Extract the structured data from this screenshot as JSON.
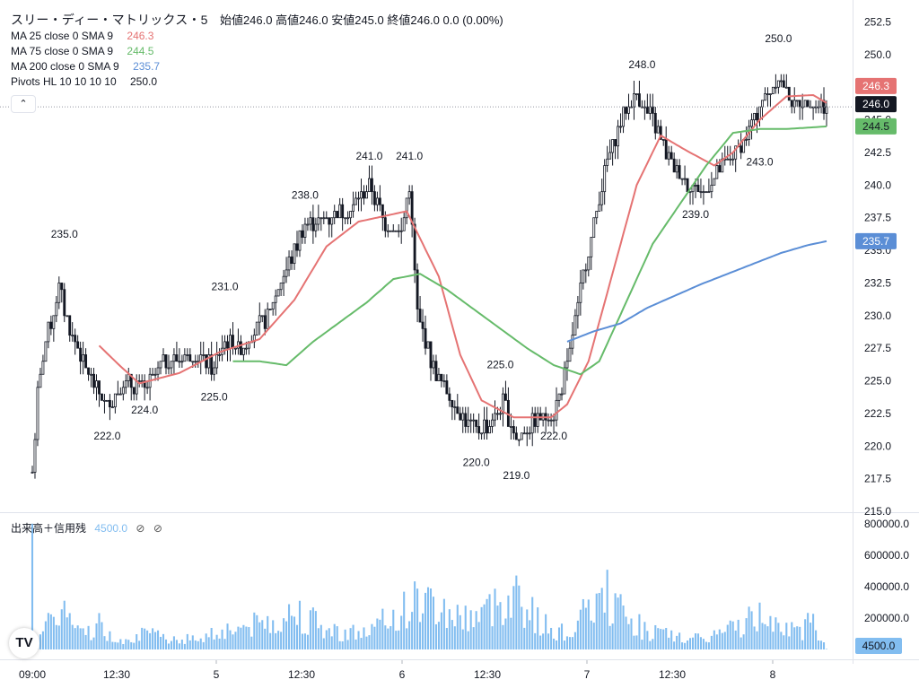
{
  "header": {
    "symbol": "スリー・ディー・マトリックス・5",
    "ohlc": "始値246.0 高値246.0 安値245.0 終値246.0 0.0 (0.00%)"
  },
  "indicators": [
    {
      "label": "MA 25 close 0 SMA 9",
      "value": "246.3",
      "color": "#e57373"
    },
    {
      "label": "MA 75 close 0 SMA 9",
      "value": "244.5",
      "color": "#66bb6a"
    },
    {
      "label": "MA 200 close 0 SMA 9",
      "value": "235.7",
      "color": "#5b8ed6"
    },
    {
      "label": "Pivots HL 10 10 10 10",
      "value": "250.0",
      "color": "#131722"
    }
  ],
  "collapse_icon": "chevron-up-icon",
  "volume_legend": {
    "label": "出来高＋信用残",
    "value": "4500.0",
    "icon1": "⊘",
    "icon2": "⊘"
  },
  "logo": "TV",
  "chart_data": {
    "type": "candlestick",
    "price_axis": {
      "ticks": [
        "252.5",
        "250.0",
        "247.5",
        "245.0",
        "242.5",
        "240.0",
        "237.5",
        "235.0",
        "232.5",
        "230.0",
        "227.5",
        "225.0",
        "222.5",
        "220.0",
        "217.5",
        "215.0"
      ],
      "range": [
        215.0,
        253.5
      ]
    },
    "volume_axis": {
      "ticks": [
        "800000.0",
        "600000.0",
        "400000.0",
        "200000.0"
      ],
      "range": [
        0,
        850000
      ]
    },
    "time_axis": [
      "09:00",
      "12:30",
      "5",
      "12:30",
      "6",
      "12:30",
      "7",
      "12:30",
      "8"
    ],
    "last_price": "246.0",
    "last_volume": "4500.0",
    "price_labels": {
      "ma25": "246.3",
      "ma75": "244.5",
      "ma200": "235.7"
    },
    "pivots": [
      {
        "text": "235.0",
        "price": 235.0,
        "type": "high",
        "bar": 12
      },
      {
        "text": "222.0",
        "price": 222.0,
        "type": "low",
        "bar": 28
      },
      {
        "text": "224.0",
        "price": 224.0,
        "type": "low",
        "bar": 42
      },
      {
        "text": "231.0",
        "price": 231.0,
        "type": "high",
        "bar": 72
      },
      {
        "text": "225.0",
        "price": 225.0,
        "type": "low",
        "bar": 68
      },
      {
        "text": "238.0",
        "price": 238.0,
        "type": "high",
        "bar": 102
      },
      {
        "text": "241.0",
        "price": 241.0,
        "type": "high",
        "bar": 126
      },
      {
        "text": "241.0",
        "price": 241.0,
        "type": "high",
        "bar": 141
      },
      {
        "text": "220.0",
        "price": 220.0,
        "type": "low",
        "bar": 166
      },
      {
        "text": "225.0",
        "price": 225.0,
        "type": "high",
        "bar": 175
      },
      {
        "text": "219.0",
        "price": 219.0,
        "type": "low",
        "bar": 181
      },
      {
        "text": "222.0",
        "price": 222.0,
        "type": "low",
        "bar": 195
      },
      {
        "text": "248.0",
        "price": 248.0,
        "type": "high",
        "bar": 228
      },
      {
        "text": "239.0",
        "price": 239.0,
        "type": "low",
        "bar": 248
      },
      {
        "text": "243.0",
        "price": 243.0,
        "type": "low",
        "bar": 272
      },
      {
        "text": "250.0",
        "price": 250.0,
        "type": "high",
        "bar": 279
      }
    ],
    "keyframes": [
      [
        0,
        218
      ],
      [
        2,
        224
      ],
      [
        5,
        228
      ],
      [
        10,
        232
      ],
      [
        14,
        229
      ],
      [
        20,
        226
      ],
      [
        28,
        223
      ],
      [
        34,
        225
      ],
      [
        42,
        224.5
      ],
      [
        50,
        226.5
      ],
      [
        60,
        227
      ],
      [
        68,
        226
      ],
      [
        72,
        228
      ],
      [
        78,
        227.5
      ],
      [
        88,
        230
      ],
      [
        96,
        234
      ],
      [
        102,
        237
      ],
      [
        110,
        237.5
      ],
      [
        118,
        238
      ],
      [
        126,
        240
      ],
      [
        132,
        237
      ],
      [
        138,
        236.5
      ],
      [
        141,
        240
      ],
      [
        144,
        230
      ],
      [
        150,
        226
      ],
      [
        158,
        223
      ],
      [
        166,
        221
      ],
      [
        172,
        222
      ],
      [
        176,
        223.5
      ],
      [
        181,
        220.5
      ],
      [
        188,
        222
      ],
      [
        195,
        222.5
      ],
      [
        200,
        226
      ],
      [
        205,
        232
      ],
      [
        210,
        237
      ],
      [
        214,
        241
      ],
      [
        220,
        245
      ],
      [
        226,
        247
      ],
      [
        232,
        245
      ],
      [
        238,
        242
      ],
      [
        245,
        240
      ],
      [
        252,
        239.5
      ],
      [
        258,
        241.5
      ],
      [
        265,
        243
      ],
      [
        272,
        246
      ],
      [
        279,
        248.5
      ],
      [
        285,
        246
      ],
      [
        291,
        246.5
      ],
      [
        296,
        246
      ]
    ],
    "ma25_keys": [
      [
        25,
        227.7
      ],
      [
        32,
        226.3
      ],
      [
        40,
        224.8
      ],
      [
        55,
        225.6
      ],
      [
        70,
        227.2
      ],
      [
        85,
        228.2
      ],
      [
        98,
        231.2
      ],
      [
        110,
        235.3
      ],
      [
        122,
        237.2
      ],
      [
        140,
        238
      ],
      [
        152,
        233
      ],
      [
        160,
        227
      ],
      [
        168,
        223.5
      ],
      [
        180,
        222.2
      ],
      [
        194,
        222.2
      ],
      [
        200,
        223.2
      ],
      [
        208,
        226.5
      ],
      [
        218,
        234
      ],
      [
        226,
        240
      ],
      [
        235,
        243.8
      ],
      [
        245,
        242.6
      ],
      [
        255,
        241.5
      ],
      [
        262,
        242.5
      ],
      [
        272,
        245
      ],
      [
        282,
        246.8
      ],
      [
        292,
        246.9
      ],
      [
        297,
        246.3
      ]
    ],
    "ma75_keys": [
      [
        75,
        226.5
      ],
      [
        85,
        226.5
      ],
      [
        95,
        226.2
      ],
      [
        105,
        228
      ],
      [
        115,
        229.5
      ],
      [
        125,
        231
      ],
      [
        135,
        232.8
      ],
      [
        145,
        233.2
      ],
      [
        155,
        232
      ],
      [
        165,
        230.5
      ],
      [
        175,
        229
      ],
      [
        185,
        227.5
      ],
      [
        195,
        226.2
      ],
      [
        205,
        225.5
      ],
      [
        212,
        226.5
      ],
      [
        222,
        231
      ],
      [
        232,
        235.5
      ],
      [
        242,
        238.5
      ],
      [
        252,
        241.5
      ],
      [
        262,
        244
      ],
      [
        272,
        244.3
      ],
      [
        282,
        244.3
      ],
      [
        297,
        244.5
      ]
    ],
    "ma200_keys": [
      [
        200,
        228
      ],
      [
        210,
        228.8
      ],
      [
        220,
        229.4
      ],
      [
        230,
        230.6
      ],
      [
        240,
        231.5
      ],
      [
        250,
        232.4
      ],
      [
        260,
        233.2
      ],
      [
        270,
        234
      ],
      [
        280,
        234.8
      ],
      [
        290,
        235.4
      ],
      [
        297,
        235.7
      ]
    ],
    "volume_keys": [
      [
        0,
        800000
      ],
      [
        1,
        90000
      ],
      [
        5,
        150000
      ],
      [
        10,
        360000
      ],
      [
        18,
        120000
      ],
      [
        25,
        200000
      ],
      [
        30,
        80000
      ],
      [
        40,
        120000
      ],
      [
        60,
        80000
      ],
      [
        70,
        150000
      ],
      [
        85,
        200000
      ],
      [
        100,
        300000
      ],
      [
        110,
        150000
      ],
      [
        125,
        130000
      ],
      [
        138,
        300000
      ],
      [
        145,
        400000
      ],
      [
        150,
        350000
      ],
      [
        160,
        250000
      ],
      [
        170,
        300000
      ],
      [
        180,
        480000
      ],
      [
        190,
        200000
      ],
      [
        200,
        120000
      ],
      [
        210,
        350000
      ],
      [
        215,
        420000
      ],
      [
        222,
        250000
      ],
      [
        230,
        150000
      ],
      [
        240,
        100000
      ],
      [
        250,
        80000
      ],
      [
        260,
        150000
      ],
      [
        270,
        250000
      ],
      [
        278,
        300000
      ],
      [
        285,
        120000
      ],
      [
        292,
        230000
      ],
      [
        297,
        4500
      ]
    ]
  }
}
